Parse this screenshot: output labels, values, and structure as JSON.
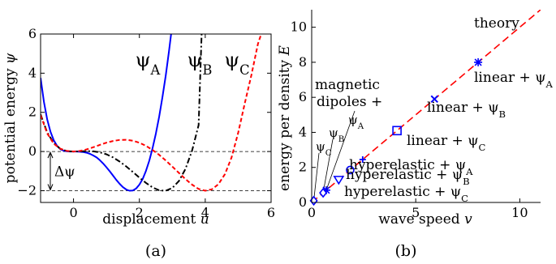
{
  "chart_data": [
    {
      "type": "line",
      "caption": "(a)",
      "xlabel": "displacement",
      "xlabel_var": "u",
      "ylabel": "potential energy",
      "ylabel_var": "ψ",
      "xlim": [
        -1,
        6
      ],
      "ylim": [
        -2.6,
        6
      ],
      "xticks": [
        0,
        2,
        4,
        6
      ],
      "yticks": [
        -2,
        0,
        2,
        4,
        6
      ],
      "x_tick_labels": [
        "0",
        "2",
        "4",
        "6"
      ],
      "y_tick_labels": [
        "−2",
        "0",
        "2",
        "4",
        "6"
      ],
      "reference_lines": [
        {
          "y": 0,
          "style": "dashed"
        },
        {
          "y": -2,
          "style": "dashed"
        }
      ],
      "delta_label": "Δψ",
      "series": [
        {
          "name": "ψ",
          "sub": "A",
          "style": "solid",
          "color": "#0000ff",
          "x": [
            -1,
            -0.9,
            -0.8,
            -0.7,
            -0.6,
            -0.5,
            -0.4,
            -0.3,
            -0.2,
            -0.1,
            0,
            0.1,
            0.2,
            0.3,
            0.4,
            0.5,
            0.6,
            0.7,
            0.8,
            0.9,
            1,
            1.1,
            1.2,
            1.3,
            1.4,
            1.5,
            1.6,
            1.7,
            1.8,
            1.9,
            2,
            2.1,
            2.2,
            2.3,
            2.4,
            2.5,
            2.6,
            2.7,
            2.8,
            2.9,
            3,
            3.1
          ],
          "y": [
            3.76,
            2.54,
            1.65,
            1.01,
            0.58,
            0.29,
            0.12,
            0.04,
            0.01,
            0.0,
            0,
            -0.0,
            -0.01,
            -0.03,
            -0.06,
            -0.12,
            -0.2,
            -0.3,
            -0.44,
            -0.61,
            -0.8,
            -1.01,
            -1.23,
            -1.45,
            -1.65,
            -1.82,
            -1.94,
            -2.0,
            -1.99,
            -1.89,
            -1.69,
            -1.4,
            -0.99,
            -0.47,
            0.16,
            0.91,
            1.78,
            2.77,
            3.88,
            5.12,
            6.5,
            8.0
          ]
        },
        {
          "name": "ψ",
          "sub": "B",
          "style": "dashdot",
          "color": "#000000",
          "x": [
            -1,
            -0.8,
            -0.6,
            -0.4,
            -0.2,
            0,
            0.2,
            0.4,
            0.6,
            0.8,
            1,
            1.2,
            1.4,
            1.6,
            1.8,
            2,
            2.2,
            2.4,
            2.6,
            2.8,
            3,
            3.2,
            3.4,
            3.6,
            3.8,
            3.9
          ],
          "y": [
            1.9,
            0.98,
            0.43,
            0.14,
            0.02,
            0,
            0.01,
            0.02,
            0.01,
            -0.04,
            -0.14,
            -0.3,
            -0.51,
            -0.76,
            -1.04,
            -1.33,
            -1.6,
            -1.83,
            -1.98,
            -2.0,
            -1.86,
            -1.51,
            -0.89,
            0.04,
            1.35,
            6.5
          ]
        },
        {
          "name": "ψ",
          "sub": "C",
          "style": "dashed",
          "color": "#ff0000",
          "x": [
            -1,
            -0.8,
            -0.6,
            -0.4,
            -0.2,
            0,
            0.2,
            0.4,
            0.6,
            0.8,
            1,
            1.2,
            1.4,
            1.6,
            1.8,
            2,
            2.2,
            2.4,
            2.6,
            2.8,
            3,
            3.2,
            3.4,
            3.6,
            3.8,
            4,
            4.2,
            4.4,
            4.6,
            4.8,
            5,
            5.2,
            5.4,
            5.6,
            5.8
          ],
          "y": [
            1.86,
            0.93,
            0.4,
            0.14,
            0.03,
            0,
            0.03,
            0.11,
            0.22,
            0.34,
            0.45,
            0.54,
            0.59,
            0.6,
            0.55,
            0.45,
            0.29,
            0.08,
            -0.17,
            -0.46,
            -0.77,
            -1.09,
            -1.41,
            -1.69,
            -1.91,
            -2.0,
            -1.93,
            -1.67,
            -1.15,
            -0.3,
            0.95,
            2.45,
            3.9,
            5.5,
            6.5
          ]
        }
      ]
    },
    {
      "type": "scatter",
      "caption": "(b)",
      "xlabel": "wave speed",
      "xlabel_var": "v",
      "ylabel": "energy per density",
      "ylabel_var": "E",
      "xlim": [
        0,
        11
      ],
      "ylim": [
        0,
        11
      ],
      "xticks": [
        0,
        5,
        10
      ],
      "yticks": [
        0,
        2,
        4,
        6,
        8,
        10
      ],
      "x_tick_labels": [
        "0",
        "5",
        "10"
      ],
      "y_tick_labels": [
        "0",
        "2",
        "4",
        "6",
        "8",
        "10"
      ],
      "theory_label": "theory",
      "theory_line": {
        "x": [
          0,
          11
        ],
        "y": [
          0,
          11
        ],
        "color": "#ff0000",
        "style": "dashed"
      },
      "group_label": [
        "magnetic",
        "dipoles +"
      ],
      "points": [
        {
          "x": 8.0,
          "y": 8.0,
          "marker": "star",
          "label": "linear + ψ",
          "sub": "A"
        },
        {
          "x": 5.9,
          "y": 5.9,
          "marker": "x",
          "label": "linear + ψ",
          "sub": "B"
        },
        {
          "x": 4.1,
          "y": 4.1,
          "marker": "square",
          "label": "linear + ψ",
          "sub": "C"
        },
        {
          "x": 2.45,
          "y": 2.45,
          "marker": "plus",
          "label": "hyperelastic + ψ",
          "sub": "A"
        },
        {
          "x": 1.85,
          "y": 1.85,
          "marker": "circle",
          "label": "hyperelastic + ψ",
          "sub": "B"
        },
        {
          "x": 1.3,
          "y": 1.3,
          "marker": "triangle-down",
          "label": "hyperelastic + ψ",
          "sub": "C"
        },
        {
          "x": 0.7,
          "y": 0.7,
          "marker": "star",
          "label": "ψ",
          "sub": "A"
        },
        {
          "x": 0.55,
          "y": 0.55,
          "marker": "diamond",
          "label": "ψ",
          "sub": "B"
        },
        {
          "x": 0.1,
          "y": 0.1,
          "marker": "diamond",
          "label": "ψ",
          "sub": "C"
        }
      ]
    }
  ]
}
